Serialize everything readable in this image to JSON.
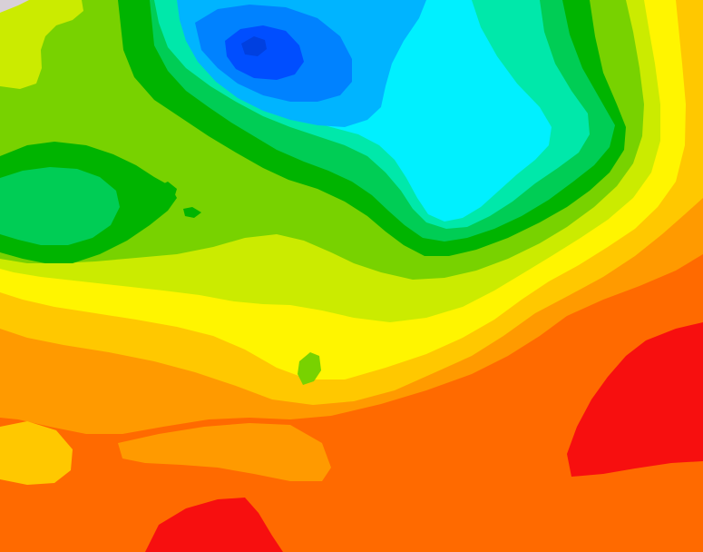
{
  "map": {
    "type": "filled-contour-field",
    "labels_visible": false,
    "levels": [
      {
        "name": "level-01-red",
        "color": "#f70f0f"
      },
      {
        "name": "level-02-dark-orange",
        "color": "#ff6a00"
      },
      {
        "name": "level-03-orange",
        "color": "#ff9a00"
      },
      {
        "name": "level-04-amber",
        "color": "#ffc800"
      },
      {
        "name": "level-05-yellow",
        "color": "#fff500"
      },
      {
        "name": "level-06-yellow-green",
        "color": "#cbeb00"
      },
      {
        "name": "level-07-lime",
        "color": "#78d200"
      },
      {
        "name": "level-08-green",
        "color": "#00b400"
      },
      {
        "name": "level-09-medium-green",
        "color": "#00cd55"
      },
      {
        "name": "level-10-aqua-green",
        "color": "#00e8aa"
      },
      {
        "name": "level-11-cyan",
        "color": "#00f0ff"
      },
      {
        "name": "level-12-sky-blue",
        "color": "#00b4ff"
      },
      {
        "name": "level-13-blue",
        "color": "#0082ff"
      },
      {
        "name": "level-14-deep-blue",
        "color": "#004eff"
      },
      {
        "name": "corner-grey",
        "color": "#d8d0d8"
      }
    ]
  }
}
